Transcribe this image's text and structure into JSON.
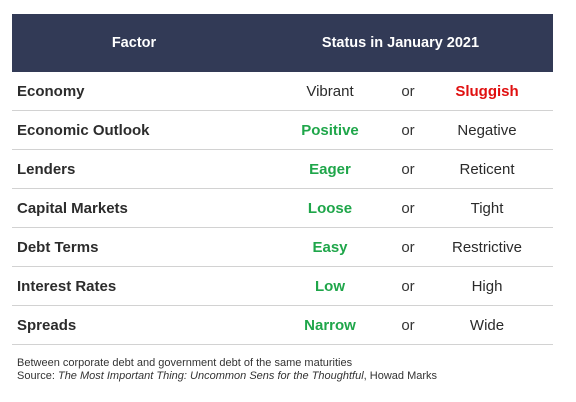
{
  "header": {
    "factor": "Factor",
    "status": "Status in January 2021"
  },
  "rows": [
    {
      "factor": "Economy",
      "option1": "Vibrant",
      "connector": "or",
      "option2": "Sluggish",
      "selected": 2,
      "selected_color": "#e01010"
    },
    {
      "factor": "Economic Outlook",
      "option1": "Positive",
      "connector": "or",
      "option2": "Negative",
      "selected": 1,
      "selected_color": "#1fa64a"
    },
    {
      "factor": "Lenders",
      "option1": "Eager",
      "connector": "or",
      "option2": "Reticent",
      "selected": 1,
      "selected_color": "#1fa64a"
    },
    {
      "factor": "Capital Markets",
      "option1": "Loose",
      "connector": "or",
      "option2": "Tight",
      "selected": 1,
      "selected_color": "#1fa64a"
    },
    {
      "factor": "Debt Terms",
      "option1": "Easy",
      "connector": "or",
      "option2": "Restrictive",
      "selected": 1,
      "selected_color": "#1fa64a"
    },
    {
      "factor": "Interest Rates",
      "option1": "Low",
      "connector": "or",
      "option2": "High",
      "selected": 1,
      "selected_color": "#1fa64a"
    },
    {
      "factor": "Spreads",
      "option1": "Narrow",
      "connector": "or",
      "option2": "Wide",
      "selected": 1,
      "selected_color": "#1fa64a"
    }
  ],
  "notes": {
    "line1": "Between corporate debt and government debt of the same maturities",
    "source_prefix": "Source: ",
    "source_title": "The Most Important Thing: Uncommon Sens for the Thoughtful",
    "source_suffix": ", Howad Marks"
  },
  "colors": {
    "header_bg": "#323a56",
    "green": "#1fa64a",
    "red": "#e01010"
  }
}
